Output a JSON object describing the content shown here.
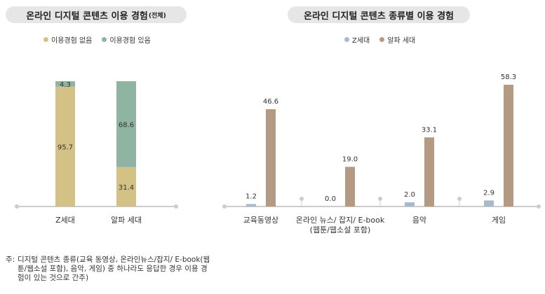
{
  "chart_data": [
    {
      "type": "bar",
      "stacked": true,
      "title": "온라인 디지털 콘텐츠 이용 경험",
      "title_suffix": "(전체)",
      "categories": [
        "Z세대",
        "알파 세대"
      ],
      "series": [
        {
          "name": "이용경험 없음",
          "values": [
            95.7,
            31.4
          ],
          "color": "#d4c185"
        },
        {
          "name": "이용경험 있음",
          "values": [
            4.3,
            68.6
          ],
          "color": "#8fb5a2"
        }
      ],
      "ylim": [
        0,
        100
      ],
      "legend": "top-center"
    },
    {
      "type": "bar",
      "title": "온라인 디지털 콘텐츠 종류별 이용 경험",
      "categories": [
        "교육동영상",
        "온라인 뉴스/ 잡지/ E-book\n(웹툰/웹소설 포함)",
        "음악",
        "게임"
      ],
      "series": [
        {
          "name": "Z세대",
          "values": [
            1.2,
            0.0,
            2.0,
            2.9
          ],
          "color": "#a9b9cc"
        },
        {
          "name": "알파 세대",
          "values": [
            46.6,
            19.0,
            33.1,
            58.3
          ],
          "color": "#b49a82"
        }
      ],
      "ylim": [
        0,
        60
      ],
      "legend": "top-center"
    }
  ],
  "note": {
    "label": "주:",
    "text": "디지털 콘텐츠 종류(교육 동영상, 온라인뉴스/잡지/ E-book(웹툰/웹소설 포함), 음악, 게임) 중 하나라도 응답한 경우 이용 경험이 있는 것으로 간주)"
  }
}
